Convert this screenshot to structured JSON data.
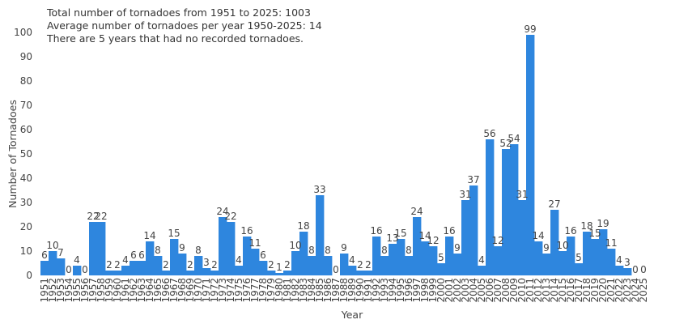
{
  "chart_data": {
    "type": "bar",
    "annotations": [
      "Total number of tornadoes from 1951 to 2025: 1003",
      "Average number of tornadoes per year 1950-2025: 14",
      "There are 5 years that had no recorded tornadoes."
    ],
    "xlabel": "Year",
    "ylabel": "Number of Tornadoes",
    "ylim": [
      0,
      100
    ],
    "yticks": [
      0,
      10,
      20,
      30,
      40,
      50,
      60,
      70,
      80,
      90,
      100
    ],
    "grid": false,
    "bar_color": "#2e86de",
    "categories": [
      "1951",
      "1952",
      "1953",
      "1954",
      "1955",
      "1956",
      "1957",
      "1958",
      "1959",
      "1960",
      "1961",
      "1962",
      "1963",
      "1964",
      "1965",
      "1966",
      "1967",
      "1968",
      "1969",
      "1970",
      "1971",
      "1972",
      "1973",
      "1974",
      "1975",
      "1976",
      "1977",
      "1978",
      "1979",
      "1980",
      "1981",
      "1982",
      "1983",
      "1984",
      "1985",
      "1986",
      "1987",
      "1988",
      "1989",
      "1990",
      "1991",
      "1992",
      "1993",
      "1994",
      "1995",
      "1996",
      "1997",
      "1998",
      "1999",
      "2000",
      "2001",
      "2002",
      "2003",
      "2004",
      "2005",
      "2006",
      "2007",
      "2008",
      "2009",
      "2010",
      "2011",
      "2012",
      "2013",
      "2014",
      "2015",
      "2016",
      "2017",
      "2018",
      "2019",
      "2020",
      "2021",
      "2022",
      "2023",
      "2024",
      "2025"
    ],
    "values": [
      6,
      10,
      7,
      0,
      4,
      0,
      22,
      22,
      2,
      2,
      4,
      6,
      6,
      14,
      8,
      2,
      15,
      9,
      2,
      8,
      3,
      2,
      24,
      22,
      4,
      16,
      11,
      6,
      2,
      1,
      2,
      10,
      18,
      8,
      33,
      8,
      0,
      9,
      4,
      2,
      2,
      16,
      8,
      13,
      15,
      8,
      24,
      14,
      12,
      5,
      16,
      9,
      31,
      37,
      4,
      56,
      12,
      52,
      54,
      31,
      99,
      14,
      9,
      27,
      10,
      16,
      5,
      18,
      15,
      19,
      11,
      4,
      3,
      0,
      0
    ]
  }
}
